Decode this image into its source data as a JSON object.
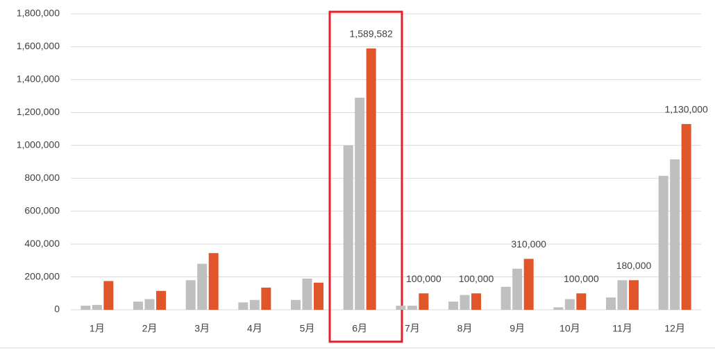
{
  "chart_data": {
    "type": "bar",
    "categories": [
      "1月",
      "2月",
      "3月",
      "4月",
      "5月",
      "6月",
      "7月",
      "8月",
      "9月",
      "10月",
      "11月",
      "12月"
    ],
    "series": [
      {
        "color": "#bfbfbf",
        "values": [
          25000,
          50000,
          180000,
          45000,
          60000,
          1000000,
          25000,
          50000,
          140000,
          15000,
          75000,
          815000
        ]
      },
      {
        "color": "#bfbfbf",
        "values": [
          30000,
          65000,
          280000,
          60000,
          190000,
          1290000,
          25000,
          90000,
          250000,
          65000,
          180000,
          915000
        ]
      },
      {
        "color": "#e0552a",
        "values": [
          175000,
          115000,
          345000,
          135000,
          165000,
          1589582,
          100000,
          100000,
          310000,
          100000,
          180000,
          1130000
        ],
        "value_labels": [
          null,
          null,
          null,
          null,
          null,
          "1,589,582",
          "100,000",
          "100,000",
          "310,000",
          "100,000",
          "180,000",
          "1,130,000"
        ]
      }
    ],
    "ylim": [
      0,
      1800000
    ],
    "yticks": [
      0,
      {
        "value": 200000,
        "label": "200,000"
      },
      {
        "value": 400000,
        "label": "400,000"
      },
      {
        "value": 600000,
        "label": "600,000"
      },
      {
        "value": 800000,
        "label": "800,000"
      },
      {
        "value": 1000000,
        "label": "1,000,000"
      },
      {
        "value": 1200000,
        "label": "1,200,000"
      },
      {
        "value": 1400000,
        "label": "1,400,000"
      },
      {
        "value": 1600000,
        "label": "1,600,000"
      },
      {
        "value": 1800000,
        "label": "1,800,000"
      }
    ],
    "grid": true
  }
}
